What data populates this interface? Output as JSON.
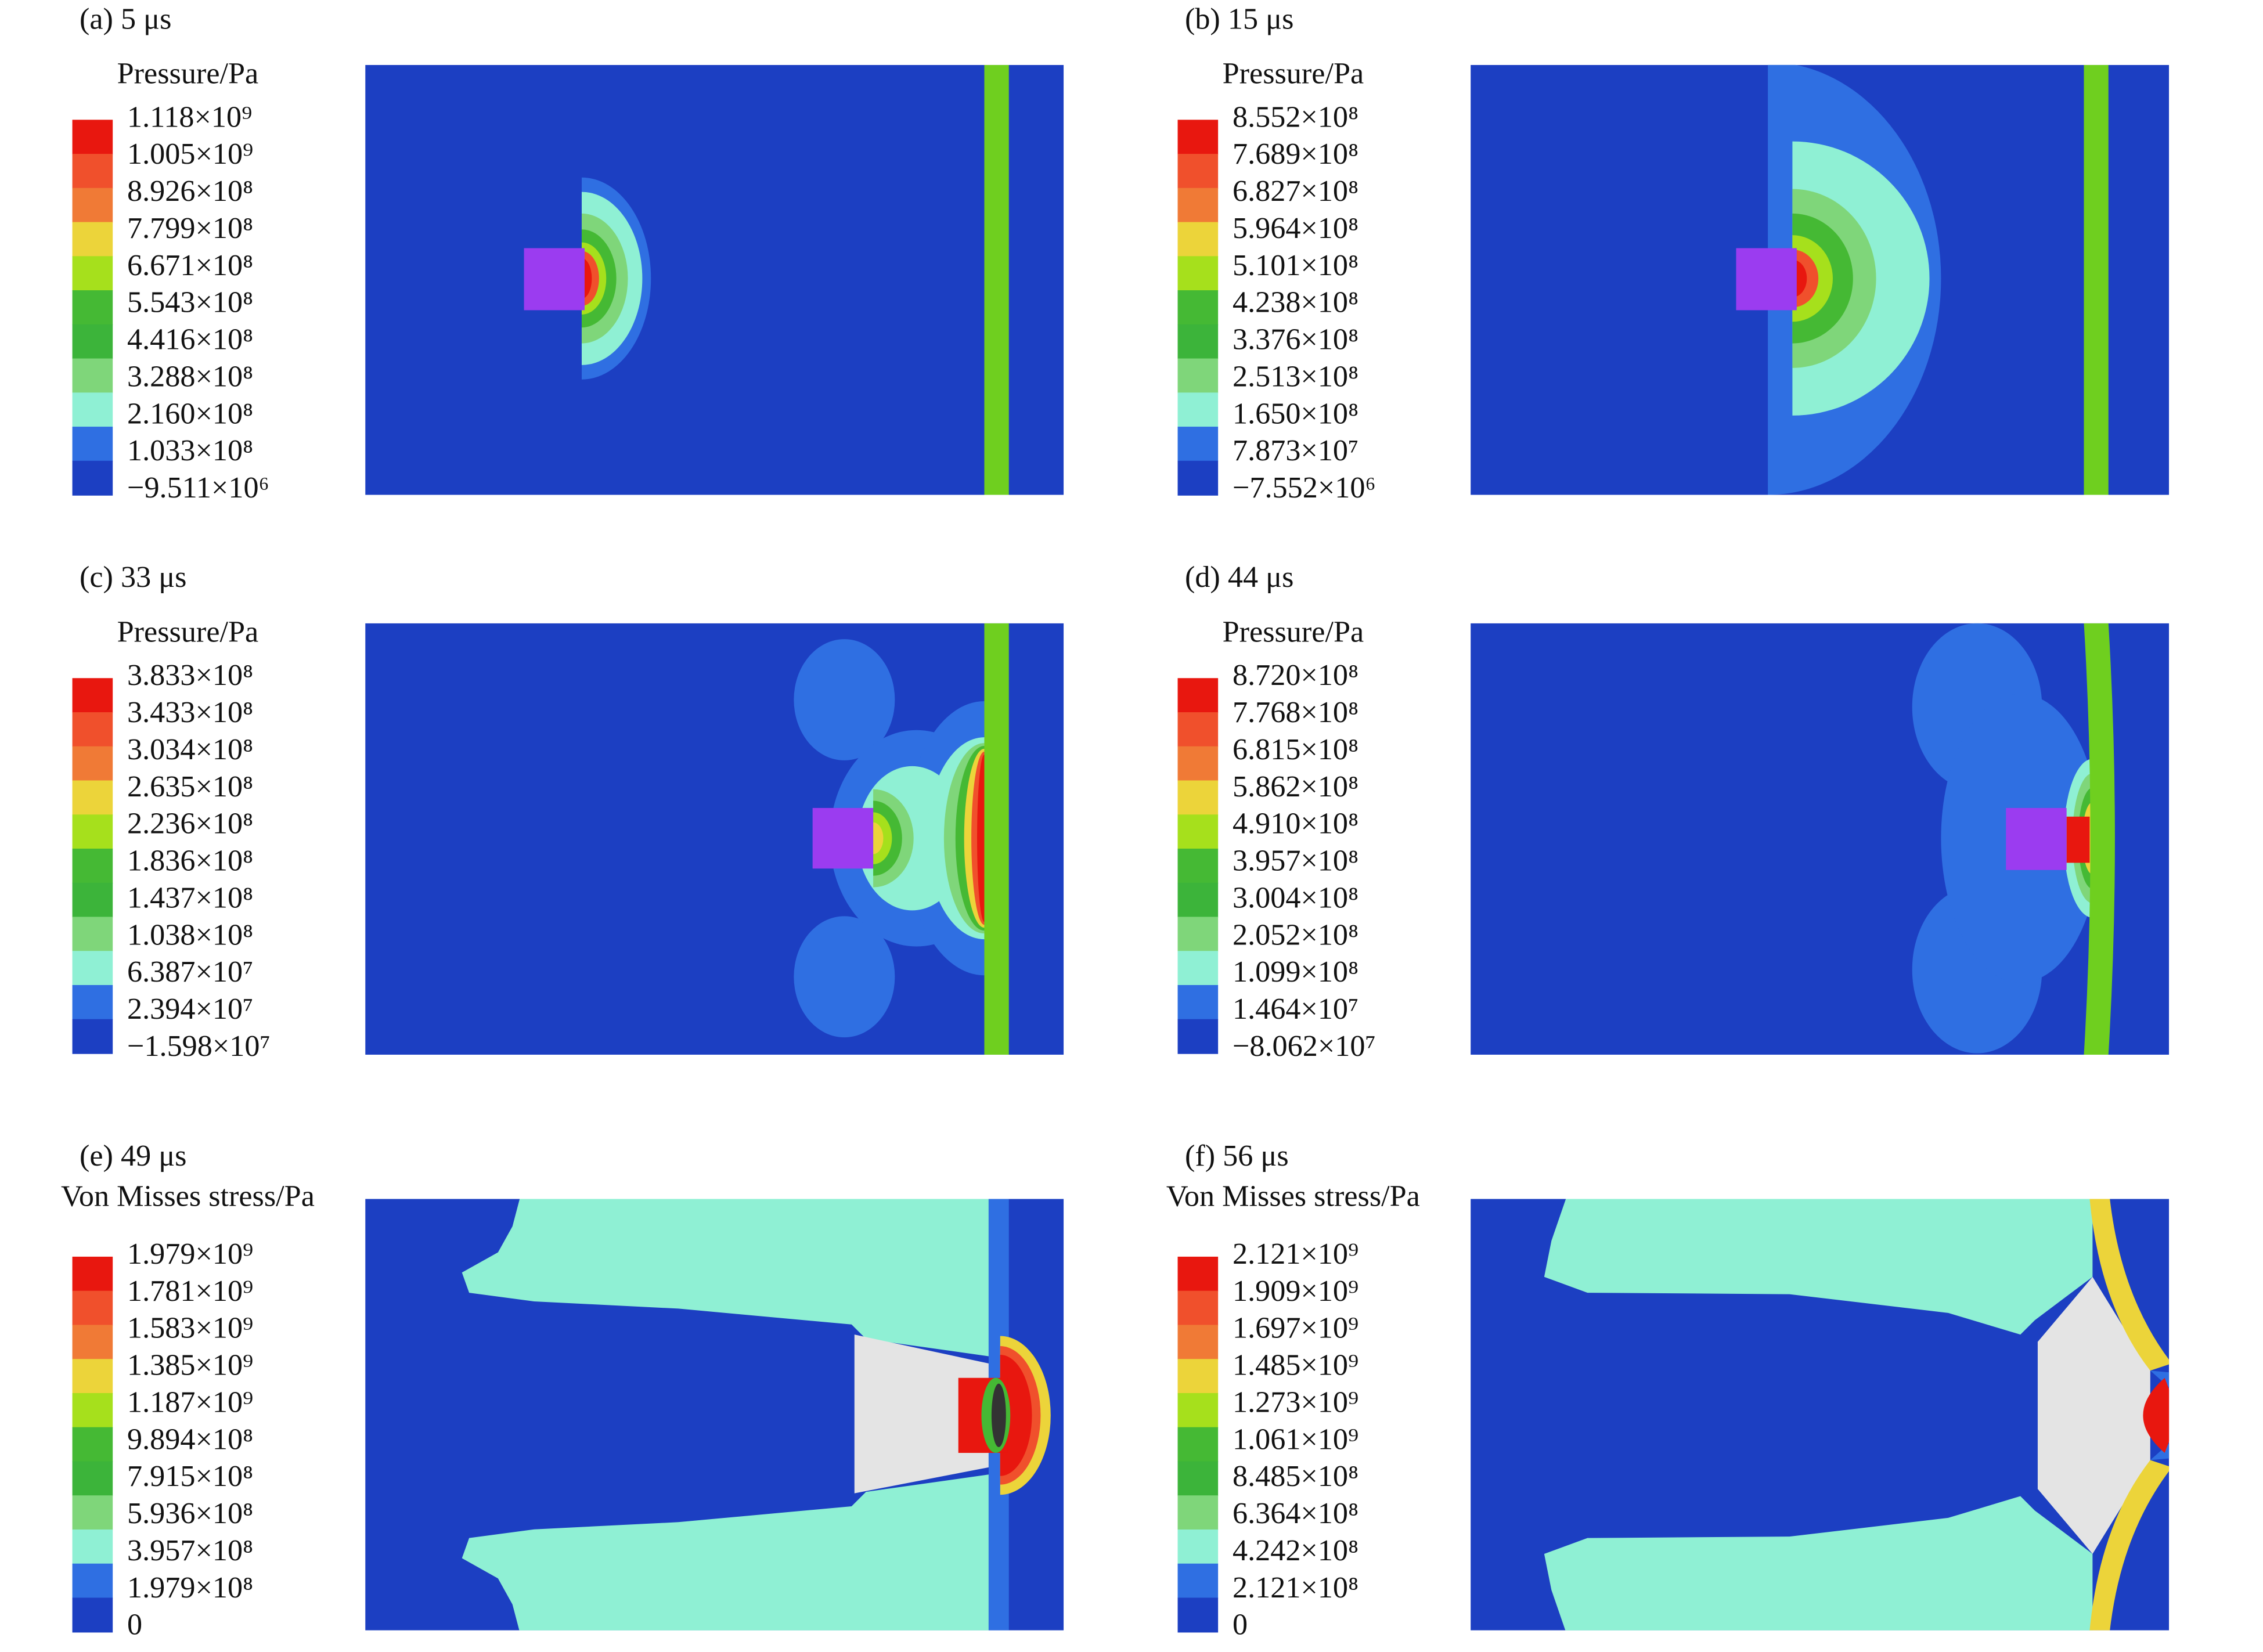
{
  "panels": [
    {
      "label": "(a) 5 μs",
      "legend_title": "Pressure/Pa",
      "legend_labels": [
        "1.118×10⁹",
        "1.005×10⁹",
        "8.926×10⁸",
        "7.799×10⁸",
        "6.671×10⁸",
        "5.543×10⁸",
        "4.416×10⁸",
        "3.288×10⁸",
        "2.160×10⁸",
        "1.033×10⁸",
        "−9.511×10⁶"
      ]
    },
    {
      "label": "(b) 15 μs",
      "legend_title": "Pressure/Pa",
      "legend_labels": [
        "8.552×10⁸",
        "7.689×10⁸",
        "6.827×10⁸",
        "5.964×10⁸",
        "5.101×10⁸",
        "4.238×10⁸",
        "3.376×10⁸",
        "2.513×10⁸",
        "1.650×10⁸",
        "7.873×10⁷",
        "−7.552×10⁶"
      ]
    },
    {
      "label": "(c) 33 μs",
      "legend_title": "Pressure/Pa",
      "legend_labels": [
        "3.833×10⁸",
        "3.433×10⁸",
        "3.034×10⁸",
        "2.635×10⁸",
        "2.236×10⁸",
        "1.836×10⁸",
        "1.437×10⁸",
        "1.038×10⁸",
        "6.387×10⁷",
        "2.394×10⁷",
        "−1.598×10⁷"
      ]
    },
    {
      "label": "(d) 44 μs",
      "legend_title": "Pressure/Pa",
      "legend_labels": [
        "8.720×10⁸",
        "7.768×10⁸",
        "6.815×10⁸",
        "5.862×10⁸",
        "4.910×10⁸",
        "3.957×10⁸",
        "3.004×10⁸",
        "2.052×10⁸",
        "1.099×10⁸",
        "1.464×10⁷",
        "−8.062×10⁷"
      ]
    },
    {
      "label": "(e) 49 μs",
      "legend_title": "Von Misses stress/Pa",
      "legend_labels": [
        "1.979×10⁹",
        "1.781×10⁹",
        "1.583×10⁹",
        "1.385×10⁹",
        "1.187×10⁹",
        "9.894×10⁸",
        "7.915×10⁸",
        "5.936×10⁸",
        "3.957×10⁸",
        "1.979×10⁸",
        "0"
      ]
    },
    {
      "label": "(f) 56 μs",
      "legend_title": "Von Misses stress/Pa",
      "legend_labels": [
        "2.121×10⁹",
        "1.909×10⁹",
        "1.697×10⁹",
        "1.485×10⁹",
        "1.273×10⁹",
        "1.061×10⁹",
        "8.485×10⁸",
        "6.364×10⁸",
        "4.242×10⁸",
        "2.121×10⁸",
        "0"
      ]
    }
  ]
}
